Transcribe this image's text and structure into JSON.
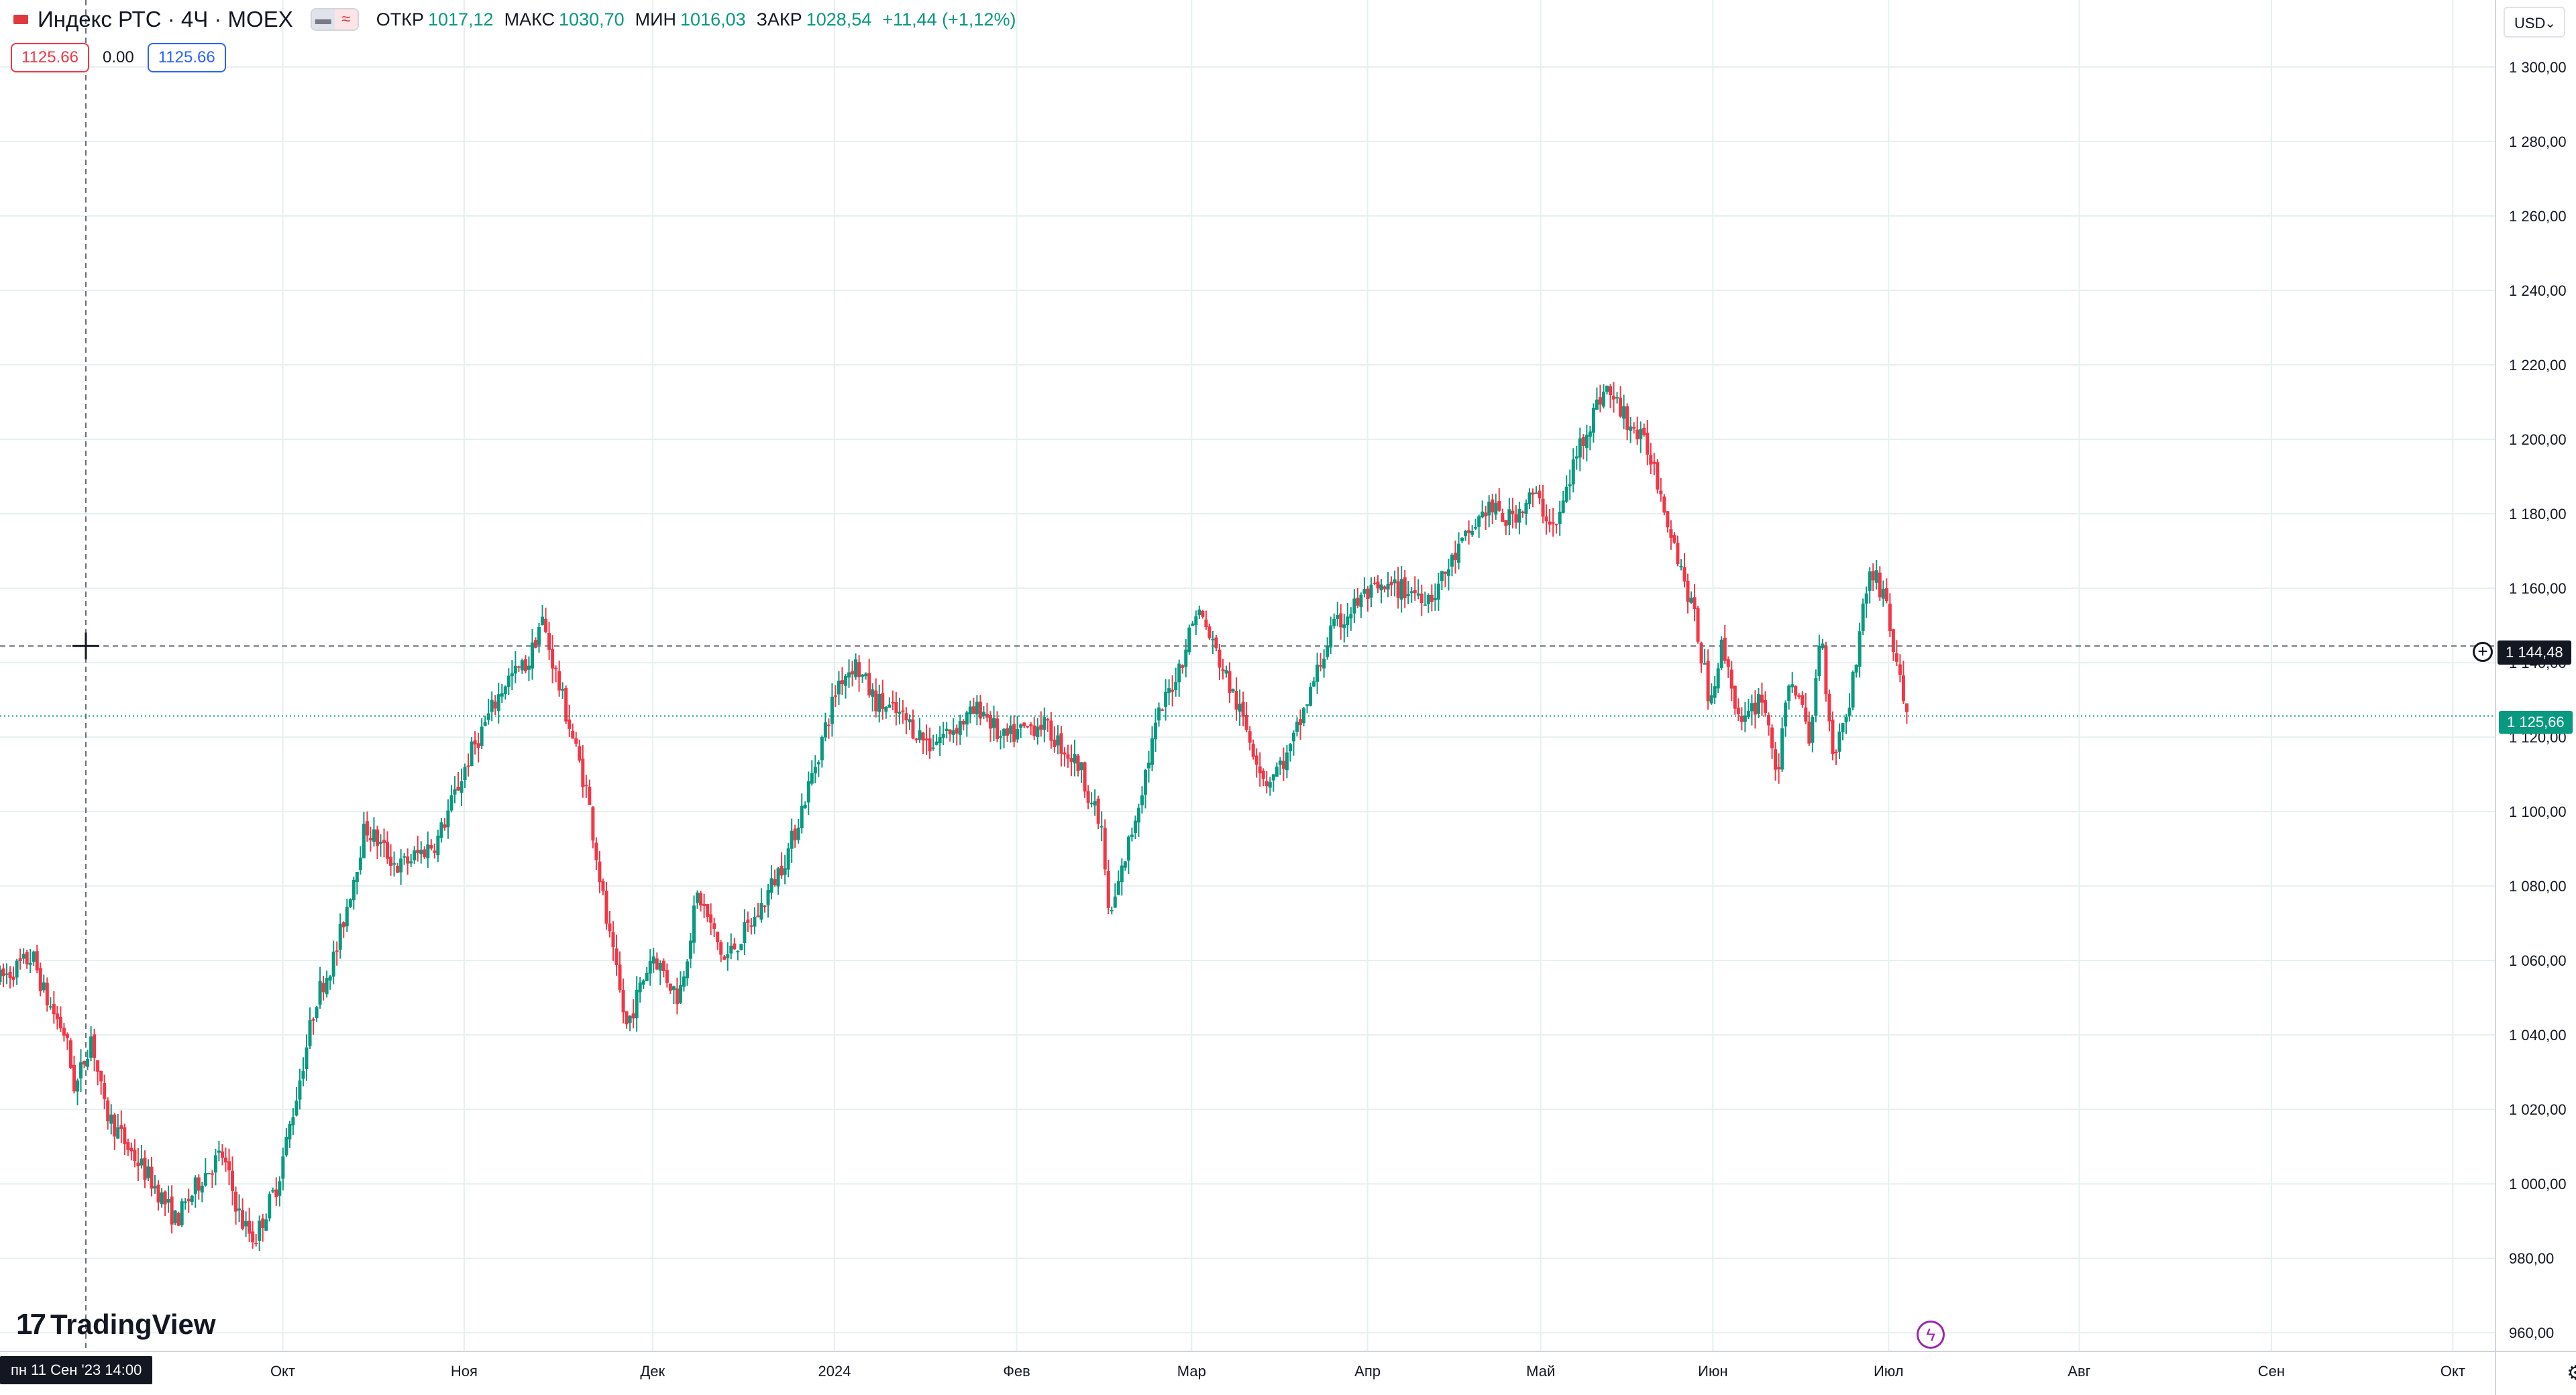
{
  "legend": {
    "symbol": "Индекс РТС · 4Ч · MOEX",
    "open_label": "ОТКР",
    "open_value": "1017,12",
    "high_label": "МАКС",
    "high_value": "1030,70",
    "low_label": "МИН",
    "low_value": "1016,03",
    "close_label": "ЗАКР",
    "close_value": "1028,54",
    "change": "+11,44 (+1,12%)",
    "flag_color": "#e03a3e"
  },
  "inputs": {
    "value_a": "1125.66",
    "value_b": "0.00",
    "value_c": "1125.66"
  },
  "currency": "USD",
  "brand": "TradingView",
  "crosshair": {
    "time_label": "пн 11 Сен '23   14:00",
    "price_label": "1 144,48",
    "price": 1144.48
  },
  "last_price": {
    "label": "1 125,66",
    "value": 1125.66,
    "color": "#089981"
  },
  "colors": {
    "up": "#089981",
    "down": "#f23645",
    "grid": "#e6f0ee"
  },
  "icons": [
    "tradingview-logo-icon",
    "lightning-event-icon",
    "settings-gear-icon",
    "crosshair-plus-icon"
  ],
  "chart_data": {
    "type": "candlestick",
    "ylim": [
      955,
      1318
    ],
    "y_ticks": [
      {
        "value": 960,
        "label": "960,00"
      },
      {
        "value": 980,
        "label": "980,00"
      },
      {
        "value": 1000,
        "label": "1 000,00"
      },
      {
        "value": 1020,
        "label": "1 020,00"
      },
      {
        "value": 1040,
        "label": "1 040,00"
      },
      {
        "value": 1060,
        "label": "1 060,00"
      },
      {
        "value": 1080,
        "label": "1 080,00"
      },
      {
        "value": 1100,
        "label": "1 100,00"
      },
      {
        "value": 1120,
        "label": "1 120,00"
      },
      {
        "value": 1140,
        "label": "1 140,00"
      },
      {
        "value": 1160,
        "label": "1 160,00"
      },
      {
        "value": 1180,
        "label": "1 180,00"
      },
      {
        "value": 1200,
        "label": "1 200,00"
      },
      {
        "value": 1220,
        "label": "1 220,00"
      },
      {
        "value": 1240,
        "label": "1 240,00"
      },
      {
        "value": 1260,
        "label": "1 260,00"
      },
      {
        "value": 1280,
        "label": "1 280,00"
      },
      {
        "value": 1300,
        "label": "1 300,00"
      }
    ],
    "x_ticks": [
      {
        "t": 0.1133,
        "label": "Окт"
      },
      {
        "t": 0.186,
        "label": "Ноя"
      },
      {
        "t": 0.2615,
        "label": "Дек"
      },
      {
        "t": 0.3344,
        "label": "2024"
      },
      {
        "t": 0.4074,
        "label": "Фев"
      },
      {
        "t": 0.4775,
        "label": "Мар"
      },
      {
        "t": 0.548,
        "label": "Апр"
      },
      {
        "t": 0.6174,
        "label": "Май"
      },
      {
        "t": 0.6864,
        "label": "Июн"
      },
      {
        "t": 0.7568,
        "label": "Июл"
      },
      {
        "t": 0.8332,
        "label": "Авг"
      },
      {
        "t": 0.9102,
        "label": "Сен"
      },
      {
        "t": 0.9829,
        "label": "Окт"
      }
    ],
    "path": [
      [
        0.0,
        1055
      ],
      [
        0.0065,
        1058
      ],
      [
        0.0131,
        1061
      ],
      [
        0.0183,
        1050
      ],
      [
        0.0262,
        1040
      ],
      [
        0.0301,
        1025
      ],
      [
        0.0366,
        1040
      ],
      [
        0.0418,
        1020
      ],
      [
        0.051,
        1010
      ],
      [
        0.0615,
        1000
      ],
      [
        0.0706,
        990
      ],
      [
        0.081,
        1002
      ],
      [
        0.0889,
        1008
      ],
      [
        0.0967,
        990
      ],
      [
        0.102,
        985
      ],
      [
        0.1111,
        1000
      ],
      [
        0.1176,
        1020
      ],
      [
        0.1268,
        1050
      ],
      [
        0.1346,
        1062
      ],
      [
        0.1464,
        1096
      ],
      [
        0.1595,
        1085
      ],
      [
        0.1751,
        1092
      ],
      [
        0.1882,
        1115
      ],
      [
        0.2026,
        1135
      ],
      [
        0.2118,
        1140
      ],
      [
        0.217,
        1152
      ],
      [
        0.2235,
        1135
      ],
      [
        0.2353,
        1105
      ],
      [
        0.2431,
        1070
      ],
      [
        0.251,
        1042
      ],
      [
        0.2614,
        1062
      ],
      [
        0.2719,
        1050
      ],
      [
        0.2797,
        1078
      ],
      [
        0.2902,
        1060
      ],
      [
        0.3033,
        1072
      ],
      [
        0.3163,
        1090
      ],
      [
        0.3255,
        1110
      ],
      [
        0.336,
        1135
      ],
      [
        0.3425,
        1140
      ],
      [
        0.3503,
        1130
      ],
      [
        0.3621,
        1125
      ],
      [
        0.3725,
        1118
      ],
      [
        0.383,
        1123
      ],
      [
        0.3935,
        1128
      ],
      [
        0.4013,
        1119
      ],
      [
        0.417,
        1124
      ],
      [
        0.4327,
        1112
      ],
      [
        0.4418,
        1094
      ],
      [
        0.4444,
        1070
      ],
      [
        0.4536,
        1095
      ],
      [
        0.464,
        1125
      ],
      [
        0.4732,
        1140
      ],
      [
        0.4797,
        1155
      ],
      [
        0.4902,
        1138
      ],
      [
        0.5007,
        1120
      ],
      [
        0.5072,
        1108
      ],
      [
        0.5163,
        1115
      ],
      [
        0.5281,
        1138
      ],
      [
        0.5333,
        1148
      ],
      [
        0.5464,
        1158
      ],
      [
        0.5595,
        1160
      ],
      [
        0.5739,
        1158
      ],
      [
        0.5843,
        1170
      ],
      [
        0.5961,
        1182
      ],
      [
        0.6039,
        1178
      ],
      [
        0.6144,
        1185
      ],
      [
        0.6235,
        1176
      ],
      [
        0.6327,
        1198
      ],
      [
        0.6431,
        1214
      ],
      [
        0.6523,
        1205
      ],
      [
        0.6614,
        1196
      ],
      [
        0.6719,
        1170
      ],
      [
        0.6797,
        1150
      ],
      [
        0.685,
        1130
      ],
      [
        0.6902,
        1145
      ],
      [
        0.698,
        1122
      ],
      [
        0.7059,
        1132
      ],
      [
        0.7124,
        1110
      ],
      [
        0.7176,
        1138
      ],
      [
        0.7255,
        1118
      ],
      [
        0.7294,
        1150
      ],
      [
        0.7346,
        1115
      ],
      [
        0.7412,
        1130
      ],
      [
        0.749,
        1165
      ],
      [
        0.7556,
        1158
      ],
      [
        0.7595,
        1140
      ],
      [
        0.7647,
        1125
      ]
    ]
  }
}
